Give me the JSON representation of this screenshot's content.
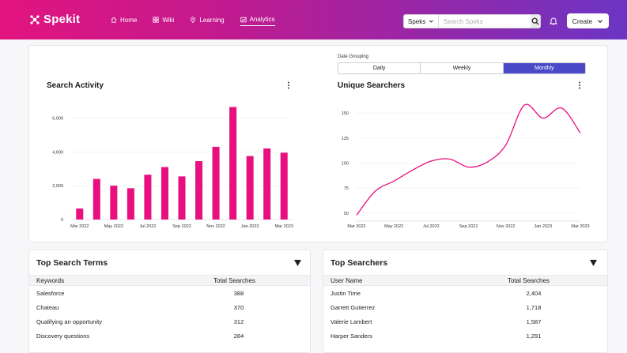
{
  "app": {
    "brand": "Spekit"
  },
  "nav": [
    {
      "label": "Home",
      "icon": "home-icon",
      "active": false
    },
    {
      "label": "Wiki",
      "icon": "grid-icon",
      "active": false
    },
    {
      "label": "Learning",
      "icon": "map-pin-icon",
      "active": false
    },
    {
      "label": "Analytics",
      "icon": "analytics-icon",
      "active": true
    }
  ],
  "search": {
    "scope": "Speks",
    "placeholder": "Search Speks"
  },
  "header": {
    "create_label": "Create"
  },
  "date_grouping": {
    "label": "Date Grouping",
    "options": [
      "Daily",
      "Weekly",
      "Monthly"
    ],
    "selected": "Monthly"
  },
  "charts": {
    "search_activity": {
      "title": "Search Activity"
    },
    "unique_searchers": {
      "title": "Unique Searchers"
    }
  },
  "chart_data": [
    {
      "type": "bar",
      "title": "Search Activity",
      "color": "#e8107f",
      "x_tick_labels": [
        "Mar 2022",
        "May 2022",
        "Jul 2022",
        "Sep 2022",
        "Nov 2022",
        "Jan 2023",
        "Mar 2023"
      ],
      "categories": [
        "Mar 2022",
        "Apr 2022",
        "May 2022",
        "Jun 2022",
        "Jul 2022",
        "Aug 2022",
        "Sep 2022",
        "Oct 2022",
        "Nov 2022",
        "Dec 2022",
        "Jan 2023",
        "Feb 2023",
        "Mar 2023"
      ],
      "values": [
        650,
        2400,
        2000,
        1850,
        2650,
        3100,
        2550,
        3450,
        4300,
        6650,
        3750,
        4200,
        3950
      ],
      "y_ticks": [
        0,
        2000,
        4000,
        6000
      ],
      "y_tick_labels": [
        "0",
        "2,000",
        "4,000",
        "6,000"
      ],
      "ylim": [
        0,
        7000
      ],
      "grid": true
    },
    {
      "type": "line",
      "title": "Unique Searchers",
      "color": "#e8107f",
      "x_tick_labels": [
        "Mar 2022",
        "May 2022",
        "Jul 2022",
        "Sep 2022",
        "Nov 2022",
        "Jan 2023",
        "Mar 2023"
      ],
      "x": [
        "Mar 2022",
        "Apr 2022",
        "May 2022",
        "Jun 2022",
        "Jul 2022",
        "Aug 2022",
        "Sep 2022",
        "Oct 2022",
        "Nov 2022",
        "Dec 2022",
        "Jan 2023",
        "Feb 2023",
        "Mar 2023"
      ],
      "values": [
        48,
        72,
        82,
        93,
        102,
        104,
        96,
        101,
        118,
        158,
        145,
        155,
        130
      ],
      "y_ticks": [
        50,
        75,
        100,
        125,
        150
      ],
      "ylim": [
        42,
        162
      ],
      "grid": true
    }
  ],
  "top_search_terms": {
    "title": "Top Search Terms",
    "columns": [
      "Keywords",
      "Total Searches"
    ],
    "rows": [
      [
        "Salesforce",
        "388"
      ],
      [
        "Chateau",
        "370"
      ],
      [
        "Qualifying an opportunity",
        "312"
      ],
      [
        "Discovery questions",
        "284"
      ]
    ]
  },
  "top_searchers": {
    "title": "Top Searchers",
    "columns": [
      "User Name",
      "Total Searches"
    ],
    "rows": [
      [
        "Justin Time",
        "2,404"
      ],
      [
        "Garrett Gutierrez",
        "1,718"
      ],
      [
        "Valerie Lambert",
        "1,587"
      ],
      [
        "Harper Sanders",
        "1,291"
      ]
    ]
  }
}
